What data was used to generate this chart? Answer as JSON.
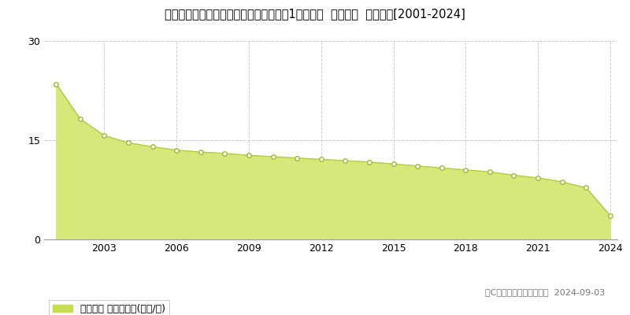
{
  "title": "愛知県知多郡南知多町大字山海字荒布赂1２０番２  地価公示  地価推移[2001-2024]",
  "years": [
    2001,
    2002,
    2003,
    2004,
    2005,
    2006,
    2007,
    2008,
    2009,
    2010,
    2011,
    2012,
    2013,
    2014,
    2015,
    2016,
    2017,
    2018,
    2019,
    2020,
    2021,
    2022,
    2023,
    2024
  ],
  "values": [
    23.5,
    18.2,
    15.7,
    14.6,
    14.0,
    13.5,
    13.2,
    13.0,
    12.7,
    12.5,
    12.3,
    12.1,
    11.9,
    11.7,
    11.4,
    11.1,
    10.8,
    10.5,
    10.2,
    9.7,
    9.3,
    8.7,
    7.8,
    3.6
  ],
  "fill_color": "#d4e97a",
  "line_color": "#b8c840",
  "marker_facecolor": "#ffffff",
  "marker_edgecolor": "#a0b830",
  "bg_color": "#ffffff",
  "plot_bg_color": "#ffffff",
  "grid_color": "#cccccc",
  "ylim": [
    0,
    30
  ],
  "yticks": [
    0,
    15,
    30
  ],
  "xticks": [
    2003,
    2006,
    2009,
    2012,
    2015,
    2018,
    2021,
    2024
  ],
  "legend_label": "地価公示 平均坤単価(万円/坤)",
  "legend_color": "#c8dc50",
  "copyright_text": "（C）土地価格ドットコム  2024-09-03",
  "title_fontsize": 10.5,
  "axis_fontsize": 9,
  "legend_fontsize": 9,
  "copyright_fontsize": 8
}
